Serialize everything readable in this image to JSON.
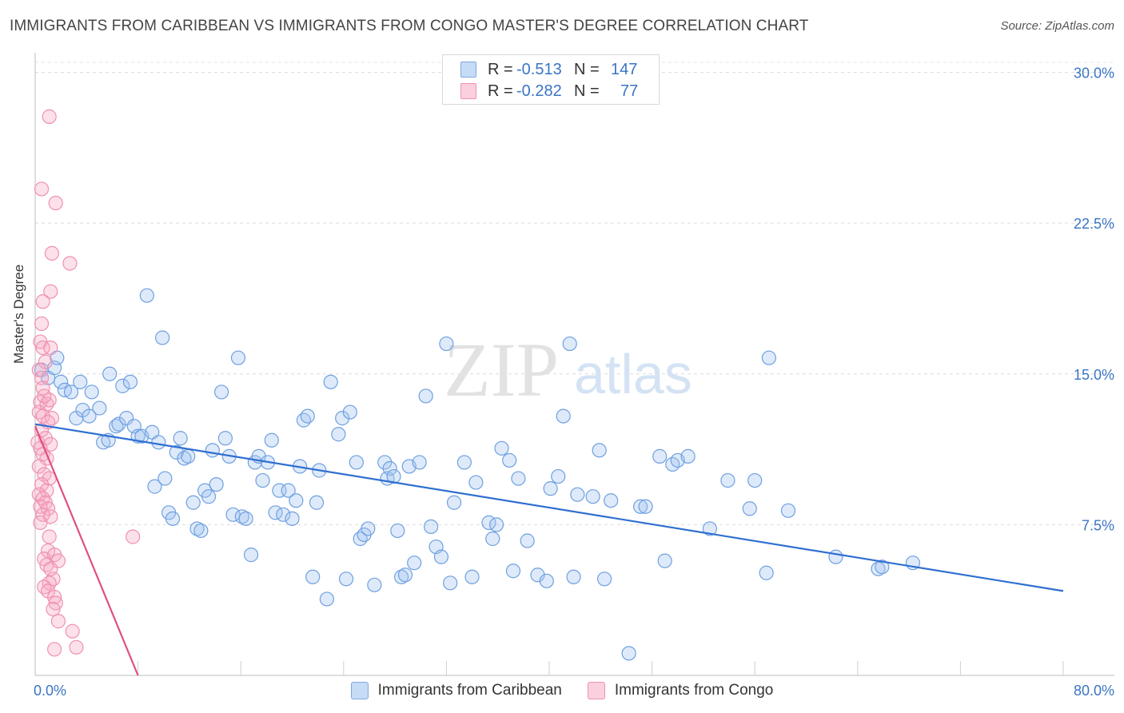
{
  "title": "IMMIGRANTS FROM CARIBBEAN VS IMMIGRANTS FROM CONGO MASTER'S DEGREE CORRELATION CHART",
  "source": "Source: ZipAtlas.com",
  "watermark": {
    "zip": "ZIP",
    "atlas": "atlas"
  },
  "legend_top": [
    {
      "r_label": "R =",
      "r_value": "-0.513",
      "n_label": "N =",
      "n_value": "147",
      "color": "#a9c8f0"
    },
    {
      "r_label": "R =",
      "r_value": "-0.282",
      "n_label": "N =",
      "n_value": "77",
      "color": "#f6b8cc"
    }
  ],
  "chart_data": {
    "type": "scatter",
    "xlabel": "",
    "ylabel": "Master's Degree",
    "xlim": [
      0,
      80
    ],
    "ylim": [
      0,
      30.5
    ],
    "x_ticks": [
      {
        "value": 0,
        "label": "0.0%"
      },
      {
        "value": 80,
        "label": "80.0%"
      }
    ],
    "y_ticks": [
      {
        "value": 7.5,
        "label": "7.5%"
      },
      {
        "value": 15,
        "label": "15.0%"
      },
      {
        "value": 22.5,
        "label": "22.5%"
      },
      {
        "value": 30,
        "label": "30.0%"
      }
    ],
    "grid": "horizontal dashed",
    "legend_position": "bottom",
    "series": [
      {
        "name": "Immigrants from Caribbean",
        "color": "#6fa0e0",
        "line_color": "#2f6fd0",
        "trend": {
          "x": [
            0,
            80
          ],
          "y": [
            12.5,
            4.2
          ]
        },
        "points": [
          [
            0.5,
            15.2
          ],
          [
            1.0,
            14.8
          ],
          [
            1.5,
            15.3
          ],
          [
            1.7,
            15.8
          ],
          [
            2.0,
            14.6
          ],
          [
            2.3,
            14.2
          ],
          [
            2.8,
            14.1
          ],
          [
            3.2,
            12.8
          ],
          [
            3.5,
            14.6
          ],
          [
            3.7,
            13.2
          ],
          [
            4.2,
            12.9
          ],
          [
            4.4,
            14.1
          ],
          [
            5.0,
            13.3
          ],
          [
            5.3,
            11.6
          ],
          [
            5.7,
            11.7
          ],
          [
            5.8,
            15.0
          ],
          [
            6.3,
            12.4
          ],
          [
            6.5,
            12.5
          ],
          [
            6.8,
            14.4
          ],
          [
            7.1,
            12.8
          ],
          [
            7.4,
            14.6
          ],
          [
            7.7,
            12.4
          ],
          [
            8.0,
            11.9
          ],
          [
            8.3,
            11.9
          ],
          [
            8.7,
            18.9
          ],
          [
            9.1,
            12.1
          ],
          [
            9.3,
            9.4
          ],
          [
            9.6,
            11.6
          ],
          [
            9.9,
            16.8
          ],
          [
            10.1,
            9.8
          ],
          [
            10.4,
            8.1
          ],
          [
            10.7,
            7.8
          ],
          [
            11.0,
            11.1
          ],
          [
            11.3,
            11.8
          ],
          [
            11.6,
            10.8
          ],
          [
            11.9,
            10.9
          ],
          [
            12.3,
            8.6
          ],
          [
            12.6,
            7.3
          ],
          [
            12.9,
            7.2
          ],
          [
            13.2,
            9.2
          ],
          [
            13.5,
            8.9
          ],
          [
            13.8,
            11.2
          ],
          [
            14.1,
            9.5
          ],
          [
            14.5,
            14.1
          ],
          [
            14.8,
            11.8
          ],
          [
            15.1,
            10.9
          ],
          [
            15.4,
            8.0
          ],
          [
            15.8,
            15.8
          ],
          [
            16.1,
            7.9
          ],
          [
            16.4,
            7.8
          ],
          [
            16.8,
            6.0
          ],
          [
            17.1,
            10.6
          ],
          [
            17.4,
            10.9
          ],
          [
            17.7,
            9.7
          ],
          [
            18.1,
            10.6
          ],
          [
            18.4,
            11.7
          ],
          [
            18.7,
            8.1
          ],
          [
            19.0,
            9.2
          ],
          [
            19.3,
            8.0
          ],
          [
            19.7,
            9.2
          ],
          [
            20.0,
            7.8
          ],
          [
            20.3,
            8.7
          ],
          [
            20.6,
            10.4
          ],
          [
            20.9,
            12.7
          ],
          [
            21.2,
            12.9
          ],
          [
            21.6,
            4.9
          ],
          [
            21.9,
            8.6
          ],
          [
            22.1,
            10.2
          ],
          [
            22.7,
            3.8
          ],
          [
            23.0,
            14.6
          ],
          [
            23.6,
            12.0
          ],
          [
            23.9,
            12.8
          ],
          [
            24.2,
            4.8
          ],
          [
            24.5,
            13.1
          ],
          [
            25.0,
            10.6
          ],
          [
            25.3,
            6.8
          ],
          [
            25.6,
            7.0
          ],
          [
            25.9,
            7.3
          ],
          [
            26.4,
            4.5
          ],
          [
            27.2,
            10.6
          ],
          [
            27.4,
            9.8
          ],
          [
            27.6,
            10.3
          ],
          [
            27.9,
            9.9
          ],
          [
            28.2,
            7.2
          ],
          [
            28.5,
            4.9
          ],
          [
            28.8,
            5.0
          ],
          [
            29.1,
            10.4
          ],
          [
            29.5,
            5.6
          ],
          [
            29.9,
            10.6
          ],
          [
            30.4,
            13.9
          ],
          [
            30.8,
            7.4
          ],
          [
            31.2,
            6.4
          ],
          [
            31.6,
            5.9
          ],
          [
            32.0,
            16.5
          ],
          [
            32.3,
            4.6
          ],
          [
            32.6,
            8.6
          ],
          [
            33.4,
            10.6
          ],
          [
            34.0,
            4.9
          ],
          [
            34.3,
            9.6
          ],
          [
            35.3,
            7.6
          ],
          [
            35.6,
            6.8
          ],
          [
            35.9,
            7.5
          ],
          [
            36.3,
            11.3
          ],
          [
            36.9,
            10.7
          ],
          [
            37.2,
            5.2
          ],
          [
            37.6,
            9.8
          ],
          [
            38.3,
            6.7
          ],
          [
            39.1,
            5.0
          ],
          [
            39.8,
            4.7
          ],
          [
            40.1,
            9.3
          ],
          [
            40.7,
            9.9
          ],
          [
            41.1,
            12.9
          ],
          [
            41.6,
            16.5
          ],
          [
            41.9,
            4.9
          ],
          [
            42.2,
            9.0
          ],
          [
            43.4,
            8.9
          ],
          [
            43.9,
            11.2
          ],
          [
            44.3,
            4.8
          ],
          [
            44.8,
            8.7
          ],
          [
            46.2,
            1.1
          ],
          [
            47.1,
            8.4
          ],
          [
            47.5,
            8.4
          ],
          [
            48.6,
            10.9
          ],
          [
            49.0,
            5.7
          ],
          [
            49.6,
            10.5
          ],
          [
            50.0,
            10.7
          ],
          [
            50.8,
            10.9
          ],
          [
            52.5,
            7.3
          ],
          [
            53.9,
            9.7
          ],
          [
            55.6,
            8.3
          ],
          [
            56.0,
            9.7
          ],
          [
            56.9,
            5.1
          ],
          [
            57.1,
            15.8
          ],
          [
            58.6,
            8.2
          ],
          [
            62.3,
            5.9
          ],
          [
            65.6,
            5.3
          ],
          [
            65.9,
            5.4
          ],
          [
            68.3,
            5.6
          ]
        ]
      },
      {
        "name": "Immigrants from Congo",
        "color": "#f090b0",
        "line_color": "#e0507f",
        "trend": {
          "x": [
            0,
            8.0
          ],
          "y": [
            12.4,
            0
          ]
        },
        "points": [
          [
            1.1,
            27.8
          ],
          [
            0.5,
            24.2
          ],
          [
            1.6,
            23.5
          ],
          [
            1.3,
            21.0
          ],
          [
            2.7,
            20.5
          ],
          [
            1.2,
            19.1
          ],
          [
            0.6,
            18.6
          ],
          [
            0.5,
            17.5
          ],
          [
            0.4,
            16.6
          ],
          [
            0.6,
            16.3
          ],
          [
            1.2,
            16.3
          ],
          [
            0.8,
            15.6
          ],
          [
            0.3,
            15.2
          ],
          [
            0.5,
            14.8
          ],
          [
            0.6,
            14.3
          ],
          [
            0.4,
            13.6
          ],
          [
            0.9,
            13.5
          ],
          [
            1.1,
            13.7
          ],
          [
            0.7,
            13.9
          ],
          [
            0.3,
            13.1
          ],
          [
            0.6,
            12.9
          ],
          [
            1.3,
            12.8
          ],
          [
            1.0,
            12.6
          ],
          [
            0.5,
            12.2
          ],
          [
            0.8,
            11.8
          ],
          [
            0.2,
            11.6
          ],
          [
            1.2,
            11.5
          ],
          [
            0.4,
            11.3
          ],
          [
            0.6,
            11.0
          ],
          [
            0.9,
            10.8
          ],
          [
            0.3,
            10.4
          ],
          [
            0.7,
            10.0
          ],
          [
            1.1,
            9.8
          ],
          [
            0.5,
            9.5
          ],
          [
            0.9,
            9.2
          ],
          [
            0.3,
            9.0
          ],
          [
            0.6,
            8.8
          ],
          [
            0.8,
            8.6
          ],
          [
            0.4,
            8.4
          ],
          [
            1.0,
            8.3
          ],
          [
            0.6,
            8.0
          ],
          [
            1.2,
            7.9
          ],
          [
            0.4,
            7.6
          ],
          [
            1.1,
            6.9
          ],
          [
            7.6,
            6.9
          ],
          [
            1.0,
            6.2
          ],
          [
            0.7,
            5.8
          ],
          [
            1.5,
            6.0
          ],
          [
            1.8,
            5.7
          ],
          [
            0.9,
            5.5
          ],
          [
            1.2,
            5.3
          ],
          [
            1.4,
            4.8
          ],
          [
            1.1,
            4.6
          ],
          [
            0.7,
            4.4
          ],
          [
            1.0,
            4.2
          ],
          [
            1.5,
            3.9
          ],
          [
            1.6,
            3.6
          ],
          [
            1.4,
            3.3
          ],
          [
            1.8,
            2.7
          ],
          [
            2.9,
            2.2
          ],
          [
            1.5,
            1.3
          ],
          [
            3.2,
            1.4
          ]
        ]
      }
    ]
  }
}
